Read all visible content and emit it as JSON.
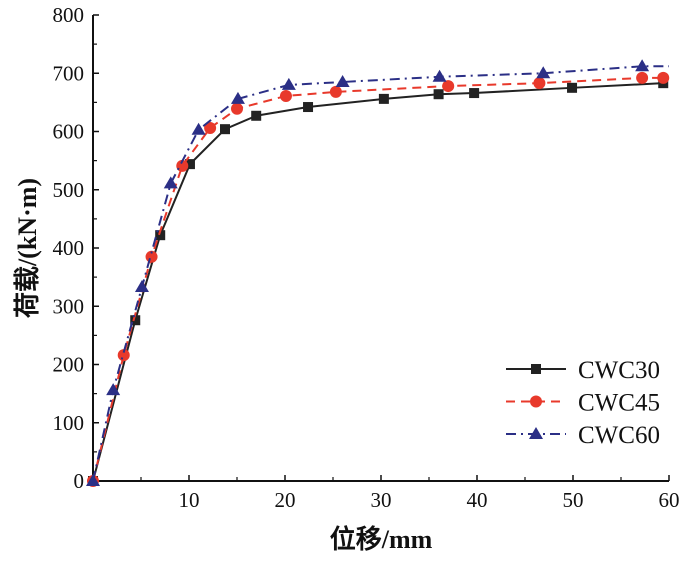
{
  "chart_data": {
    "type": "line",
    "xlabel": "位移/mm",
    "ylabel": "荷载/(kN·m)",
    "xlim": [
      0,
      60
    ],
    "ylim": [
      0,
      800
    ],
    "x_ticks": [
      "10",
      "20",
      "30",
      "40",
      "50",
      "60"
    ],
    "y_ticks": [
      "0",
      "100",
      "200",
      "300",
      "400",
      "500",
      "600",
      "700",
      "800"
    ],
    "grid": false,
    "legend_position": "bottom-right",
    "series": [
      {
        "name": "CWC30",
        "color": "#222222",
        "marker": "square",
        "dash": "solid",
        "x": [
          0,
          4.4,
          7.0,
          10.1,
          13.75,
          17.0,
          22.4,
          30.3,
          36.0,
          39.7,
          49.9,
          59.4
        ],
        "y": [
          0,
          276,
          422,
          544,
          604,
          627,
          642,
          656,
          664,
          666,
          675,
          683
        ]
      },
      {
        "name": "CWC45",
        "color": "#e8392b",
        "marker": "circle",
        "dash": "dashed",
        "x": [
          0,
          3.2,
          6.1,
          9.3,
          12.2,
          15.0,
          20.1,
          25.3,
          37.0,
          46.5,
          57.2,
          59.4
        ],
        "y": [
          0,
          216,
          385,
          541,
          606,
          639,
          661,
          668,
          678,
          683,
          692,
          692
        ]
      },
      {
        "name": "CWC60",
        "color": "#2b2f86",
        "marker": "triangle",
        "dash": "dashdot",
        "x": [
          0,
          2.1,
          5.1,
          8.1,
          11.0,
          15.1,
          20.4,
          26.0,
          36.1,
          46.9,
          57.2,
          60
        ],
        "y": [
          0,
          156,
          333,
          511,
          603,
          656,
          680,
          685,
          694,
          700,
          712,
          712
        ]
      }
    ]
  }
}
